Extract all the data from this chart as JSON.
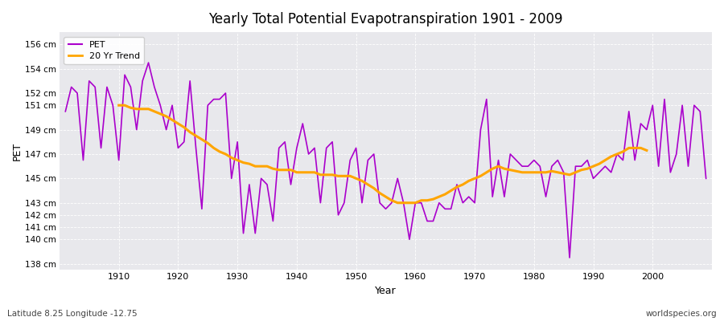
{
  "title": "Yearly Total Potential Evapotranspiration 1901 - 2009",
  "xlabel": "Year",
  "ylabel": "PET",
  "bottom_left_label": "Latitude 8.25 Longitude -12.75",
  "bottom_right_label": "worldspecies.org",
  "ylim_min": 137.5,
  "ylim_max": 157.0,
  "xlim_min": 1900,
  "xlim_max": 2010,
  "ytick_positions": [
    138,
    140,
    141,
    142,
    143,
    145,
    147,
    149,
    151,
    152,
    154,
    156
  ],
  "ytick_labels": [
    "138 cm",
    "140 cm",
    "141 cm",
    "142 cm",
    "143 cm",
    "145 cm",
    "147 cm",
    "149 cm",
    "151 cm",
    "152 cm",
    "154 cm",
    "156 cm"
  ],
  "xtick_positions": [
    1910,
    1920,
    1930,
    1940,
    1950,
    1960,
    1970,
    1980,
    1990,
    2000
  ],
  "pet_color": "#AA00CC",
  "trend_color": "#FFA500",
  "fig_bg_color": "#FFFFFF",
  "plot_bg_color": "#E8E8EC",
  "legend_pet": "PET",
  "legend_trend": "20 Yr Trend",
  "years": [
    1901,
    1902,
    1903,
    1904,
    1905,
    1906,
    1907,
    1908,
    1909,
    1910,
    1911,
    1912,
    1913,
    1914,
    1915,
    1916,
    1917,
    1918,
    1919,
    1920,
    1921,
    1922,
    1923,
    1924,
    1925,
    1926,
    1927,
    1928,
    1929,
    1930,
    1931,
    1932,
    1933,
    1934,
    1935,
    1936,
    1937,
    1938,
    1939,
    1940,
    1941,
    1942,
    1943,
    1944,
    1945,
    1946,
    1947,
    1948,
    1949,
    1950,
    1951,
    1952,
    1953,
    1954,
    1955,
    1956,
    1957,
    1958,
    1959,
    1960,
    1961,
    1962,
    1963,
    1964,
    1965,
    1966,
    1967,
    1968,
    1969,
    1970,
    1971,
    1972,
    1973,
    1974,
    1975,
    1976,
    1977,
    1978,
    1979,
    1980,
    1981,
    1982,
    1983,
    1984,
    1985,
    1986,
    1987,
    1988,
    1989,
    1990,
    1991,
    1992,
    1993,
    1994,
    1995,
    1996,
    1997,
    1998,
    1999,
    2000,
    2001,
    2002,
    2003,
    2004,
    2005,
    2006,
    2007,
    2008,
    2009
  ],
  "pet_values": [
    150.5,
    152.5,
    152.0,
    146.5,
    153.0,
    152.5,
    147.5,
    152.5,
    151.0,
    146.5,
    153.5,
    152.5,
    149.0,
    153.0,
    154.5,
    152.5,
    151.0,
    149.0,
    151.0,
    147.5,
    148.0,
    153.0,
    147.5,
    142.5,
    151.0,
    151.5,
    151.5,
    152.0,
    145.0,
    148.0,
    140.5,
    144.5,
    140.5,
    145.0,
    144.5,
    141.5,
    147.5,
    148.0,
    144.5,
    147.5,
    149.5,
    147.0,
    147.5,
    143.0,
    147.5,
    148.0,
    142.0,
    143.0,
    146.5,
    147.5,
    143.0,
    146.5,
    147.0,
    143.0,
    142.5,
    143.0,
    145.0,
    143.0,
    140.0,
    143.0,
    143.0,
    141.5,
    141.5,
    143.0,
    142.5,
    142.5,
    144.5,
    143.0,
    143.5,
    143.0,
    149.0,
    151.5,
    143.5,
    146.5,
    143.5,
    147.0,
    146.5,
    146.0,
    146.0,
    146.5,
    146.0,
    143.5,
    146.0,
    146.5,
    145.5,
    138.5,
    146.0,
    146.0,
    146.5,
    145.0,
    145.5,
    146.0,
    145.5,
    147.0,
    146.5,
    150.5,
    146.5,
    149.5,
    149.0,
    151.0,
    146.0,
    151.5,
    145.5,
    147.0,
    151.0,
    146.0,
    151.0,
    150.5,
    145.0
  ],
  "trend_values": [
    null,
    null,
    null,
    null,
    null,
    null,
    null,
    null,
    null,
    151.0,
    151.0,
    150.8,
    150.7,
    150.7,
    150.7,
    150.5,
    150.3,
    150.1,
    149.8,
    149.5,
    149.2,
    148.8,
    148.5,
    148.2,
    147.9,
    147.5,
    147.2,
    147.0,
    146.7,
    146.5,
    146.3,
    146.2,
    146.0,
    146.0,
    146.0,
    145.8,
    145.7,
    145.7,
    145.7,
    145.5,
    145.5,
    145.5,
    145.5,
    145.3,
    145.3,
    145.3,
    145.2,
    145.2,
    145.2,
    145.0,
    144.8,
    144.5,
    144.2,
    143.8,
    143.5,
    143.2,
    143.0,
    143.0,
    143.0,
    143.0,
    143.2,
    143.2,
    143.3,
    143.5,
    143.7,
    144.0,
    144.3,
    144.5,
    144.8,
    145.0,
    145.2,
    145.5,
    145.8,
    146.0,
    145.8,
    145.7,
    145.6,
    145.5,
    145.5,
    145.5,
    145.5,
    145.5,
    145.6,
    145.5,
    145.4,
    145.3,
    145.5,
    145.7,
    145.8,
    146.0,
    146.2,
    146.5,
    146.8,
    147.0,
    147.2,
    147.5,
    147.5,
    147.5,
    147.3
  ]
}
